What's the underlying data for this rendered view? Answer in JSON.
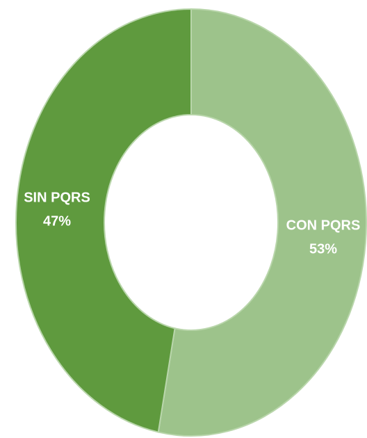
{
  "chart_data": {
    "type": "donut",
    "categories": [
      "CON PQRS",
      "SIN PQRS"
    ],
    "values": [
      53,
      47
    ],
    "value_labels": [
      "53%",
      "47%"
    ],
    "colors": [
      "#9dc38b",
      "#5f9a3e"
    ]
  }
}
